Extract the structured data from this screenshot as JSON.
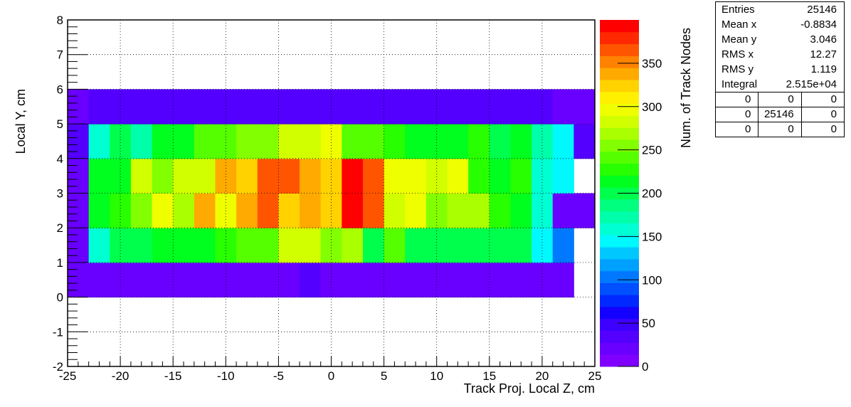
{
  "chart_data": {
    "type": "heatmap",
    "xlabel": "Track Proj. Local Z, cm",
    "ylabel": "Local Y, cm",
    "zlabel": "Num. of Track Nodes",
    "xlim": [
      -25,
      25
    ],
    "ylim": [
      -2,
      8
    ],
    "zlim": [
      0,
      400
    ],
    "x_ticks": [
      -25,
      -20,
      -15,
      -10,
      -5,
      0,
      5,
      10,
      15,
      20,
      25
    ],
    "y_ticks": [
      -2,
      -1,
      0,
      1,
      2,
      3,
      4,
      5,
      6,
      7,
      8
    ],
    "z_ticks": [
      0,
      50,
      100,
      150,
      200,
      250,
      300,
      350
    ],
    "x_bin_edges": [
      -25,
      -23,
      -21,
      -19,
      -17,
      -15,
      -13,
      -11,
      -9,
      -7,
      -5,
      -3,
      -1,
      1,
      3,
      5,
      7,
      9,
      11,
      13,
      15,
      17,
      19,
      21,
      23,
      25
    ],
    "y_bin_edges": [
      0,
      1,
      2,
      3,
      4,
      5,
      6
    ],
    "values": [
      [
        20,
        20,
        20,
        20,
        20,
        20,
        20,
        20,
        20,
        20,
        20,
        30,
        20,
        20,
        20,
        20,
        20,
        20,
        20,
        20,
        20,
        20,
        20,
        20,
        0
      ],
      [
        20,
        160,
        200,
        200,
        220,
        220,
        210,
        230,
        240,
        240,
        280,
        280,
        250,
        270,
        200,
        240,
        200,
        200,
        200,
        200,
        200,
        200,
        140,
        100,
        0
      ],
      [
        20,
        210,
        230,
        250,
        290,
        270,
        340,
        300,
        340,
        360,
        330,
        340,
        330,
        390,
        370,
        280,
        300,
        260,
        270,
        270,
        230,
        210,
        160,
        20,
        20
      ],
      [
        20,
        210,
        210,
        280,
        250,
        280,
        280,
        340,
        320,
        370,
        370,
        340,
        320,
        390,
        370,
        300,
        290,
        280,
        300,
        230,
        210,
        230,
        160,
        140,
        0
      ],
      [
        30,
        160,
        200,
        170,
        210,
        210,
        240,
        240,
        260,
        260,
        280,
        280,
        300,
        240,
        240,
        230,
        210,
        210,
        220,
        230,
        200,
        210,
        170,
        140,
        30
      ],
      [
        20,
        30,
        30,
        30,
        30,
        30,
        30,
        30,
        30,
        30,
        30,
        40,
        30,
        30,
        30,
        30,
        30,
        30,
        30,
        30,
        30,
        30,
        30,
        20,
        20
      ]
    ],
    "palette": [
      "#7f00ff",
      "#6900ff",
      "#5300ff",
      "#3d00ff",
      "#1400ff",
      "#0028ff",
      "#0050ff",
      "#0078ff",
      "#00a0ff",
      "#00c8ff",
      "#00f8ff",
      "#00ffd2",
      "#00ffaa",
      "#00ff7f",
      "#00ff4d",
      "#00ff1e",
      "#28ff00",
      "#55ff00",
      "#82ff00",
      "#aaff00",
      "#d2ff00",
      "#f0ff00",
      "#fff000",
      "#ffd200",
      "#ffaa00",
      "#ff8200",
      "#ff5500",
      "#ff2800",
      "#ff0000"
    ],
    "grid": true,
    "legend": "colorbar-right",
    "stats": {
      "rows": [
        {
          "label": "Entries",
          "value": "25146"
        },
        {
          "label": "Mean x",
          "value": "-0.8834"
        },
        {
          "label": "Mean y",
          "value": "3.046"
        },
        {
          "label": "RMS x",
          "value": "12.27"
        },
        {
          "label": "RMS y",
          "value": "1.119"
        },
        {
          "label": "Integral",
          "value": "2.515e+04"
        }
      ],
      "grid": [
        [
          "0",
          "0",
          "0"
        ],
        [
          "0",
          "25146",
          "0"
        ],
        [
          "0",
          "0",
          "0"
        ]
      ]
    }
  }
}
